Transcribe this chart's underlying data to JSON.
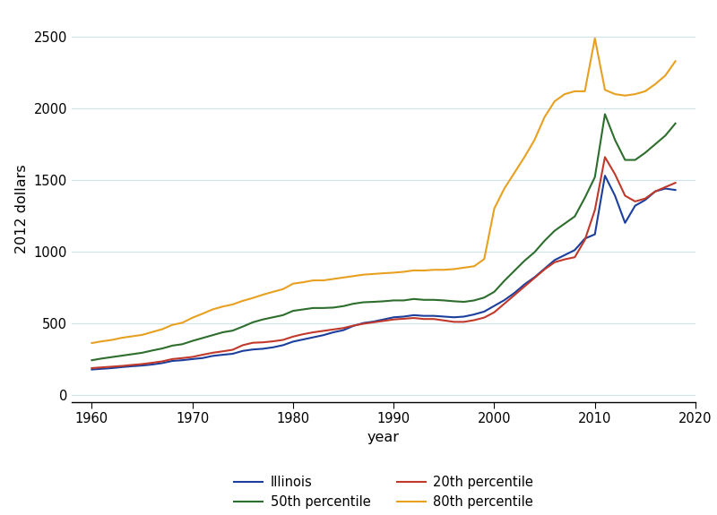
{
  "title": "",
  "xlabel": "year",
  "ylabel": "2012 dollars",
  "xlim": [
    1958,
    2020
  ],
  "ylim": [
    -50,
    2650
  ],
  "yticks": [
    0,
    500,
    1000,
    1500,
    2000,
    2500
  ],
  "xticks": [
    1960,
    1970,
    1980,
    1990,
    2000,
    2010,
    2020
  ],
  "background_color": "#ffffff",
  "grid_color": "#cce5ee",
  "years": [
    1960,
    1961,
    1962,
    1963,
    1964,
    1965,
    1966,
    1967,
    1968,
    1969,
    1970,
    1971,
    1972,
    1973,
    1974,
    1975,
    1976,
    1977,
    1978,
    1979,
    1980,
    1981,
    1982,
    1983,
    1984,
    1985,
    1986,
    1987,
    1988,
    1989,
    1990,
    1991,
    1992,
    1993,
    1994,
    1995,
    1996,
    1997,
    1998,
    1999,
    2000,
    2001,
    2002,
    2003,
    2004,
    2005,
    2006,
    2007,
    2008,
    2009,
    2010,
    2011,
    2012,
    2013,
    2014,
    2015,
    2016,
    2017,
    2018
  ],
  "illinois": [
    175,
    180,
    185,
    192,
    198,
    203,
    210,
    220,
    235,
    240,
    248,
    255,
    270,
    278,
    285,
    305,
    315,
    320,
    330,
    345,
    370,
    385,
    400,
    415,
    435,
    450,
    480,
    500,
    510,
    525,
    540,
    545,
    555,
    550,
    550,
    545,
    540,
    545,
    560,
    580,
    620,
    660,
    710,
    770,
    820,
    880,
    940,
    975,
    1010,
    1090,
    1120,
    1530,
    1390,
    1200,
    1320,
    1360,
    1420,
    1440,
    1430
  ],
  "p20": [
    185,
    190,
    195,
    200,
    207,
    213,
    222,
    232,
    248,
    255,
    263,
    278,
    292,
    302,
    313,
    345,
    362,
    365,
    372,
    382,
    405,
    422,
    435,
    445,
    455,
    465,
    482,
    495,
    505,
    515,
    525,
    530,
    535,
    528,
    528,
    518,
    508,
    508,
    520,
    538,
    575,
    635,
    695,
    755,
    815,
    875,
    925,
    945,
    960,
    1080,
    1290,
    1660,
    1540,
    1390,
    1350,
    1370,
    1420,
    1450,
    1480
  ],
  "p50": [
    240,
    252,
    262,
    272,
    282,
    292,
    308,
    322,
    342,
    352,
    375,
    395,
    415,
    435,
    447,
    475,
    505,
    525,
    540,
    555,
    585,
    595,
    605,
    605,
    608,
    618,
    635,
    645,
    648,
    652,
    658,
    658,
    668,
    662,
    662,
    658,
    652,
    648,
    658,
    678,
    718,
    795,
    865,
    935,
    995,
    1075,
    1145,
    1195,
    1245,
    1375,
    1520,
    1960,
    1780,
    1640,
    1640,
    1690,
    1750,
    1810,
    1895
  ],
  "p80": [
    360,
    372,
    382,
    397,
    407,
    417,
    437,
    457,
    487,
    502,
    537,
    565,
    595,
    615,
    630,
    655,
    675,
    698,
    718,
    737,
    775,
    785,
    798,
    798,
    808,
    818,
    828,
    838,
    843,
    848,
    852,
    858,
    868,
    867,
    872,
    872,
    877,
    887,
    897,
    947,
    1300,
    1440,
    1550,
    1660,
    1780,
    1940,
    2050,
    2100,
    2120,
    2120,
    2490,
    2130,
    2100,
    2090,
    2100,
    2120,
    2170,
    2230,
    2330
  ],
  "illinois_color": "#1c3f9e",
  "p20_color": "#c0392b",
  "p50_color": "#2d6e2d",
  "p80_color": "#e8a020",
  "line_width": 1.5
}
